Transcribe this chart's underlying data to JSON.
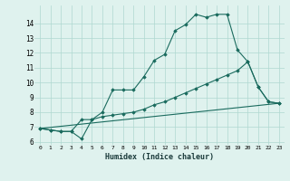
{
  "xlabel": "Humidex (Indice chaleur)",
  "background_color": "#dff2ee",
  "grid_color": "#afd8d0",
  "line_color": "#1a6b5e",
  "xlim": [
    -0.5,
    23.5
  ],
  "ylim": [
    5.8,
    15.2
  ],
  "yticks": [
    6,
    7,
    8,
    9,
    10,
    11,
    12,
    13,
    14
  ],
  "xticks": [
    0,
    1,
    2,
    3,
    4,
    5,
    6,
    7,
    8,
    9,
    10,
    11,
    12,
    13,
    14,
    15,
    16,
    17,
    18,
    19,
    20,
    21,
    22,
    23
  ],
  "series": [
    {
      "x": [
        0,
        1,
        2,
        3,
        4,
        5,
        6,
        7,
        8,
        9,
        10,
        11,
        12,
        13,
        14,
        15,
        16,
        17,
        18,
        19,
        20,
        21,
        22,
        23
      ],
      "y": [
        6.9,
        6.8,
        6.7,
        6.7,
        6.2,
        7.5,
        8.0,
        9.5,
        9.5,
        9.5,
        10.4,
        11.5,
        11.9,
        13.5,
        13.9,
        14.6,
        14.4,
        14.6,
        14.6,
        12.2,
        11.4,
        9.7,
        8.7,
        8.6
      ]
    },
    {
      "x": [
        0,
        1,
        2,
        3,
        4,
        5,
        6,
        7,
        8,
        9,
        10,
        11,
        12,
        13,
        14,
        15,
        16,
        17,
        18,
        19,
        20,
        21,
        22,
        23
      ],
      "y": [
        6.9,
        6.8,
        6.7,
        6.7,
        7.5,
        7.5,
        7.7,
        7.8,
        7.9,
        8.0,
        8.2,
        8.5,
        8.7,
        9.0,
        9.3,
        9.6,
        9.9,
        10.2,
        10.5,
        10.8,
        11.4,
        9.7,
        8.7,
        8.6
      ]
    },
    {
      "x": [
        0,
        23
      ],
      "y": [
        6.9,
        8.6
      ]
    }
  ]
}
